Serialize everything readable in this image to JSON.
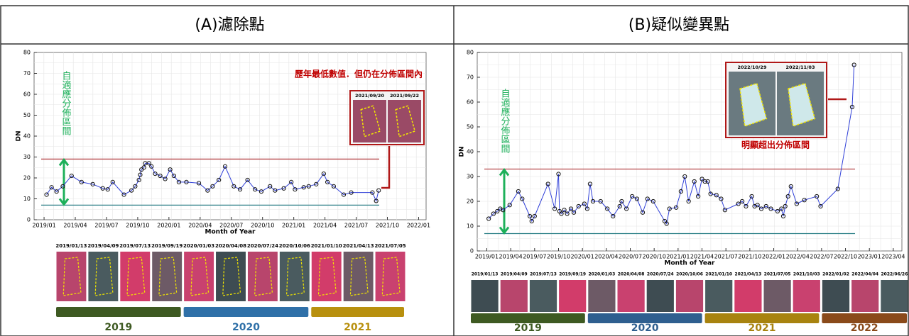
{
  "chart_data": [
    {
      "type": "line",
      "title": "(A)濾除點",
      "xlabel": "Month of Year",
      "ylabel": "DN",
      "x": [
        2019.02,
        2019.06,
        2019.1,
        2019.15,
        2019.22,
        2019.3,
        2019.39,
        2019.47,
        2019.51,
        2019.55,
        2019.64,
        2019.7,
        2019.73,
        2019.76,
        2019.77,
        2019.78,
        2019.8,
        2019.81,
        2019.84,
        2019.86,
        2019.89,
        2019.93,
        2019.97,
        2020.01,
        2020.04,
        2020.08,
        2020.14,
        2020.24,
        2020.31,
        2020.35,
        2020.4,
        2020.45,
        2020.52,
        2020.57,
        2020.63,
        2020.69,
        2020.74,
        2020.81,
        2020.85,
        2020.92,
        2020.98,
        2021.01,
        2021.08,
        2021.12,
        2021.18,
        2021.24,
        2021.27,
        2021.32,
        2021.4,
        2021.46,
        2021.63,
        2021.66,
        2021.68
      ],
      "values": [
        12,
        15.5,
        13.5,
        16,
        21,
        18,
        17,
        15,
        14.5,
        18,
        12,
        14,
        16,
        19,
        21.5,
        24,
        25,
        27,
        27,
        25.5,
        22,
        21,
        19.5,
        24,
        21,
        18,
        18,
        17.5,
        14,
        16,
        19,
        25.5,
        16,
        14.5,
        19,
        14.5,
        13.5,
        16,
        14,
        15,
        18,
        14.5,
        15.5,
        16,
        17,
        22,
        18,
        16,
        12,
        13,
        13,
        9,
        14
      ],
      "color": "#2f3fd8",
      "xlim": [
        2018.92,
        2022.06
      ],
      "xticks": [
        {
          "value": 2019,
          "label": "2019/01"
        },
        {
          "value": 2019.25,
          "label": "2019/04"
        },
        {
          "value": 2019.5,
          "label": "2019/07"
        },
        {
          "value": 2019.75,
          "label": "2019/10"
        },
        {
          "value": 2020,
          "label": "2020/01"
        },
        {
          "value": 2020.25,
          "label": "2020/04"
        },
        {
          "value": 2020.5,
          "label": "2020/07"
        },
        {
          "value": 2020.75,
          "label": "2020/10"
        },
        {
          "value": 2021,
          "label": "2021/01"
        },
        {
          "value": 2021.25,
          "label": "2021/04"
        },
        {
          "value": 2021.5,
          "label": "2021/07"
        },
        {
          "value": 2021.75,
          "label": "2021/10"
        },
        {
          "value": 2022,
          "label": "2022/01"
        }
      ],
      "ylim": [
        0,
        80
      ],
      "yticks": [
        0,
        10,
        20,
        30,
        40,
        50,
        60,
        70,
        80
      ],
      "grid": true,
      "hlines": [
        {
          "value": 29,
          "color": "#b5474a"
        },
        {
          "value": 7,
          "color": "#2a7f86"
        }
      ],
      "band_label": "自適應分佈區間",
      "annotation": "歷年最低數值．但仍在分佈區間內",
      "inset_dates": [
        "2021/09/20",
        "2021/09/22"
      ],
      "image_dates": [
        "2019/01/13",
        "2019/04/09",
        "2019/07/13",
        "2019/09/19",
        "2020/01/03",
        "2020/04/08",
        "2020/07/24",
        "2020/10/06",
        "2021/01/10",
        "2021/04/13",
        "2021/07/05"
      ],
      "year_bars": [
        {
          "label": "2019",
          "color": "#3e5a22"
        },
        {
          "label": "2020",
          "color": "#2f70a8"
        },
        {
          "label": "2021",
          "color": "#b8900e"
        }
      ]
    },
    {
      "type": "line",
      "title": "(B)疑似變異點",
      "xlabel": "Month of Year",
      "ylabel": "DN",
      "x": [
        2019.02,
        2019.07,
        2019.11,
        2019.14,
        2019.17,
        2019.24,
        2019.33,
        2019.37,
        2019.45,
        2019.47,
        2019.5,
        2019.64,
        2019.71,
        2019.75,
        2019.76,
        2019.78,
        2019.81,
        2019.84,
        2019.88,
        2019.91,
        2019.96,
        2020.02,
        2020.05,
        2020.08,
        2020.11,
        2020.19,
        2020.26,
        2020.32,
        2020.39,
        2020.41,
        2020.46,
        2020.52,
        2020.57,
        2020.63,
        2020.68,
        2020.74,
        2020.86,
        2020.88,
        2020.91,
        2020.98,
        2021.03,
        2021.07,
        2021.11,
        2021.17,
        2021.21,
        2021.25,
        2021.28,
        2021.31,
        2021.34,
        2021.4,
        2021.45,
        2021.49,
        2021.63,
        2021.67,
        2021.71,
        2021.77,
        2021.8,
        2021.83,
        2021.87,
        2021.92,
        2021.97,
        2022.04,
        2022.08,
        2022.1,
        2022.12,
        2022.15,
        2022.18,
        2022.24,
        2022.32,
        2022.45,
        2022.49,
        2022.67,
        2022.82,
        2022.84
      ],
      "values": [
        13,
        15,
        16,
        17,
        16.5,
        18.5,
        24,
        21,
        14,
        12,
        14,
        27,
        17,
        31,
        16,
        15,
        16.5,
        15,
        17,
        15.5,
        18,
        19,
        17,
        27,
        20,
        20,
        17,
        14,
        18,
        20,
        17,
        22,
        21,
        15.5,
        21,
        20,
        12,
        11,
        17,
        17.5,
        24,
        30,
        20,
        28,
        22,
        29,
        28,
        28,
        23,
        22.5,
        21,
        16.5,
        19,
        20,
        18,
        22,
        18,
        18.5,
        17,
        18,
        17,
        16,
        17,
        14,
        18,
        22,
        26,
        19,
        20.5,
        22,
        18,
        25,
        58,
        75
      ],
      "color": "#2f3fd8",
      "xlim": [
        2018.9,
        2023.34
      ],
      "xticks": [
        {
          "value": 2019,
          "label": "2019/01"
        },
        {
          "value": 2019.25,
          "label": "2019/04"
        },
        {
          "value": 2019.5,
          "label": "2019/07"
        },
        {
          "value": 2019.75,
          "label": "2019/10"
        },
        {
          "value": 2020,
          "label": "2020/01"
        },
        {
          "value": 2020.25,
          "label": "2020/04"
        },
        {
          "value": 2020.5,
          "label": "2020/07"
        },
        {
          "value": 2020.75,
          "label": "2020/10"
        },
        {
          "value": 2021,
          "label": "2021/01"
        },
        {
          "value": 2021.25,
          "label": "2021/04"
        },
        {
          "value": 2021.5,
          "label": "2021/07"
        },
        {
          "value": 2021.75,
          "label": "2021/10"
        },
        {
          "value": 2022,
          "label": "2022/01"
        },
        {
          "value": 2022.25,
          "label": "2022/04"
        },
        {
          "value": 2022.5,
          "label": "2022/07"
        },
        {
          "value": 2022.75,
          "label": "2022/10"
        },
        {
          "value": 2023,
          "label": "2023/01"
        },
        {
          "value": 2023.25,
          "label": "2023/04"
        }
      ],
      "ylim": [
        0,
        80
      ],
      "yticks": [
        0,
        10,
        20,
        30,
        40,
        50,
        60,
        70,
        80
      ],
      "grid": true,
      "hlines": [
        {
          "value": 33,
          "color": "#b5474a"
        },
        {
          "value": 7,
          "color": "#2a7f86"
        }
      ],
      "band_label": "自適應分佈區間",
      "annotation": "明顯超出分佈區間",
      "inset_dates": [
        "2022/10/29",
        "2022/11/03"
      ],
      "image_dates": [
        "2019/01/13",
        "2019/04/09",
        "2019/07/13",
        "2019/09/19",
        "2020/01/03",
        "2020/04/08",
        "2020/07/24",
        "2020/10/06",
        "2021/01/10",
        "2021/04/13",
        "2021/07/05",
        "2021/10/03",
        "2022/01/02",
        "2022/04/04",
        "2022/06/26"
      ],
      "year_bars": [
        {
          "label": "2019",
          "color": "#3e5a22"
        },
        {
          "label": "2020",
          "color": "#2f5f8f"
        },
        {
          "label": "2021",
          "color": "#a8830f"
        },
        {
          "label": "2022",
          "color": "#8a4a1a"
        }
      ]
    }
  ]
}
